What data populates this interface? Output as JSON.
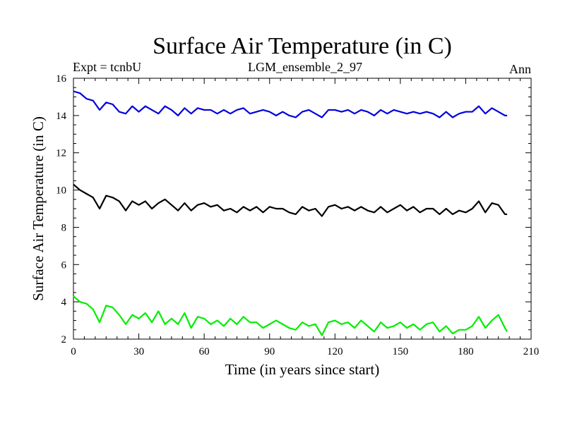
{
  "chart_data": {
    "type": "line",
    "title": "Surface Air Temperature (in C)",
    "subtitle_left": "Expt = tcnbU",
    "subtitle_center": "LGM_ensemble_2_97",
    "subtitle_right": "Ann",
    "xlabel": "Time (in years since start)",
    "ylabel": "Surface Air Temperature (in C)",
    "xlim": [
      0,
      210
    ],
    "ylim": [
      2,
      16
    ],
    "xticks": [
      0,
      30,
      60,
      90,
      120,
      150,
      180,
      210
    ],
    "yticks": [
      2,
      4,
      6,
      8,
      10,
      12,
      14,
      16
    ],
    "grid": false,
    "x": [
      0,
      3,
      6,
      9,
      12,
      15,
      18,
      21,
      24,
      27,
      30,
      33,
      36,
      39,
      42,
      45,
      48,
      51,
      54,
      57,
      60,
      63,
      66,
      69,
      72,
      75,
      78,
      81,
      84,
      87,
      90,
      93,
      96,
      99,
      102,
      105,
      108,
      111,
      114,
      117,
      120,
      123,
      126,
      129,
      132,
      135,
      138,
      141,
      144,
      147,
      150,
      153,
      156,
      159,
      162,
      165,
      168,
      171,
      174,
      177,
      180,
      183,
      186,
      189,
      192,
      195,
      198,
      199
    ],
    "series": [
      {
        "name": "blue",
        "color": "#0000dd",
        "values": [
          15.3,
          15.2,
          14.9,
          14.8,
          14.3,
          14.7,
          14.6,
          14.2,
          14.1,
          14.5,
          14.2,
          14.5,
          14.3,
          14.1,
          14.5,
          14.3,
          14.0,
          14.4,
          14.1,
          14.4,
          14.3,
          14.3,
          14.1,
          14.3,
          14.1,
          14.3,
          14.4,
          14.1,
          14.2,
          14.3,
          14.2,
          14.0,
          14.2,
          14.0,
          13.9,
          14.2,
          14.3,
          14.1,
          13.9,
          14.3,
          14.3,
          14.2,
          14.3,
          14.1,
          14.3,
          14.2,
          14.0,
          14.3,
          14.1,
          14.3,
          14.2,
          14.1,
          14.2,
          14.1,
          14.2,
          14.1,
          13.9,
          14.2,
          13.9,
          14.1,
          14.2,
          14.2,
          14.5,
          14.1,
          14.4,
          14.2,
          14.0,
          14.0
        ]
      },
      {
        "name": "black",
        "color": "#000000",
        "values": [
          10.3,
          10.0,
          9.8,
          9.6,
          9.0,
          9.7,
          9.6,
          9.4,
          8.9,
          9.4,
          9.2,
          9.4,
          9.0,
          9.3,
          9.5,
          9.2,
          8.9,
          9.3,
          8.9,
          9.2,
          9.3,
          9.1,
          9.2,
          8.9,
          9.0,
          8.8,
          9.1,
          8.9,
          9.1,
          8.8,
          9.1,
          9.0,
          9.0,
          8.8,
          8.7,
          9.1,
          8.9,
          9.0,
          8.6,
          9.1,
          9.2,
          9.0,
          9.1,
          8.9,
          9.1,
          8.9,
          8.8,
          9.1,
          8.8,
          9.0,
          9.2,
          8.9,
          9.1,
          8.8,
          9.0,
          9.0,
          8.7,
          9.0,
          8.7,
          8.9,
          8.8,
          9.0,
          9.4,
          8.8,
          9.3,
          9.2,
          8.7,
          8.7
        ]
      },
      {
        "name": "green",
        "color": "#00ee00",
        "values": [
          4.3,
          4.0,
          3.9,
          3.6,
          2.9,
          3.8,
          3.7,
          3.3,
          2.8,
          3.3,
          3.1,
          3.4,
          2.9,
          3.5,
          2.8,
          3.1,
          2.8,
          3.4,
          2.6,
          3.2,
          3.1,
          2.8,
          3.0,
          2.7,
          3.1,
          2.8,
          3.2,
          2.9,
          2.9,
          2.6,
          2.8,
          3.0,
          2.8,
          2.6,
          2.5,
          2.9,
          2.7,
          2.8,
          2.2,
          2.9,
          3.0,
          2.8,
          2.9,
          2.6,
          3.0,
          2.7,
          2.4,
          2.9,
          2.6,
          2.7,
          2.9,
          2.6,
          2.8,
          2.5,
          2.8,
          2.9,
          2.4,
          2.7,
          2.3,
          2.5,
          2.5,
          2.7,
          3.2,
          2.6,
          3.0,
          3.3,
          2.6,
          2.4
        ]
      }
    ]
  }
}
